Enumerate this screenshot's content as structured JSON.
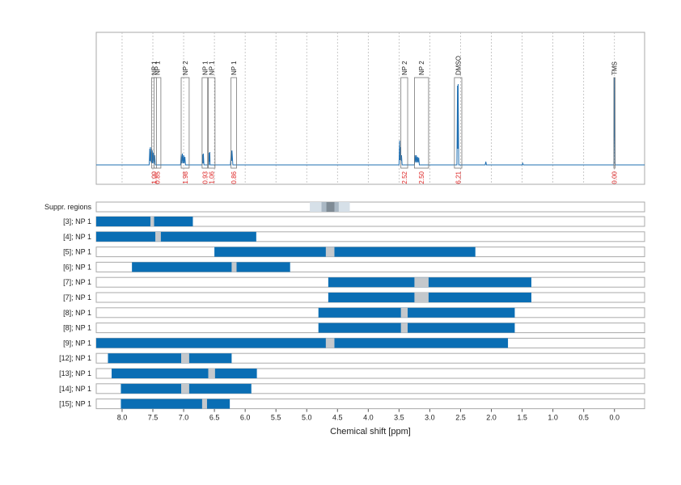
{
  "chart_data": {
    "type": "nmr",
    "x_label": "Chemical shift [ppm]",
    "xlim": [
      8.42,
      -0.49
    ],
    "xticks": [
      {
        "value": 8,
        "label": "8.0"
      },
      7.5,
      {
        "value": 7,
        "label": "7.0"
      },
      6.5,
      {
        "value": 6,
        "label": "6.0"
      },
      5.5,
      {
        "value": 5,
        "label": "5.0"
      },
      4.5,
      {
        "value": 4,
        "label": "4.0"
      },
      3.5,
      {
        "value": 3,
        "label": "3.0"
      },
      2.5,
      {
        "value": 2,
        "label": "2.0"
      },
      1.5,
      {
        "value": 1,
        "label": "1.0"
      },
      0.5,
      {
        "value": 0,
        "label": "0.0"
      }
    ],
    "ylim": [
      -0.24,
      1.64
    ],
    "grid": true,
    "spectrum": {
      "color": "#1f6fb2",
      "x": [
        8.42,
        7.56,
        7.55,
        7.545,
        7.54,
        7.53,
        7.52,
        7.515,
        7.51,
        7.5,
        7.49,
        7.48,
        7.47,
        7.46,
        7.05,
        7.04,
        7.03,
        7.02,
        7.01,
        7.0,
        6.99,
        6.98,
        6.97,
        6.92,
        6.7,
        6.69,
        6.685,
        6.68,
        6.67,
        6.62,
        6.59,
        6.585,
        6.58,
        6.575,
        6.57,
        6.24,
        6.225,
        6.22,
        6.215,
        6.2,
        3.5,
        3.49,
        3.485,
        3.48,
        3.47,
        3.46,
        3.45,
        3.25,
        3.24,
        3.23,
        3.22,
        3.21,
        3.2,
        3.19,
        3.18,
        3.17,
        2.56,
        2.55,
        2.545,
        2.54,
        2.53,
        2.1,
        2.09,
        2.08,
        1.5,
        1.49,
        1.48,
        0.01,
        0.0,
        -0.01,
        -0.49
      ],
      "y": [
        0,
        0,
        0.2,
        0.05,
        0.22,
        0.03,
        0.2,
        0.02,
        0.18,
        0.02,
        0.15,
        0.01,
        0.12,
        0,
        0,
        0.13,
        0.02,
        0.14,
        0.02,
        0.12,
        0.02,
        0.1,
        0,
        0,
        0,
        0.13,
        0.02,
        0.14,
        0,
        0,
        0,
        0.15,
        0.04,
        0.16,
        0,
        0,
        0.17,
        0.05,
        0.18,
        0,
        0,
        0.3,
        0.06,
        0.22,
        0.05,
        0.12,
        0,
        0,
        0.12,
        0.03,
        0.12,
        0.03,
        0.1,
        0.03,
        0.09,
        0,
        0,
        0.98,
        0.2,
        1.0,
        0,
        0,
        0.04,
        0,
        0,
        0.02,
        0,
        0,
        1.08,
        0,
        0
      ]
    },
    "peaks": [
      {
        "label": "NP 1",
        "range": [
          7.52,
          7.44
        ],
        "integral": 1.0,
        "integral_label": "1.00"
      },
      {
        "label": "NP 1",
        "range": [
          7.48,
          7.37
        ],
        "integral": 0.85
      },
      {
        "label": "NP 2",
        "range": [
          7.04,
          6.91
        ],
        "integral": 1.98
      },
      {
        "label": "NP 1",
        "range": [
          6.7,
          6.61
        ],
        "integral": 0.93
      },
      {
        "label": "NP 1",
        "range": [
          6.6,
          6.49
        ],
        "integral": 1.06
      },
      {
        "label": "NP 1",
        "range": [
          6.23,
          6.14
        ],
        "integral": 0.86
      },
      {
        "label": "NP 2",
        "range": [
          3.47,
          3.36
        ],
        "integral": 2.52
      },
      {
        "label": "NP 2",
        "range": [
          3.25,
          3.02
        ],
        "integral": 2.5,
        "integral_label": "2.50"
      },
      {
        "label": "DMSO",
        "range": [
          2.6,
          2.48
        ],
        "integral": 6.21
      },
      {
        "label": "TMS",
        "range": [
          0.01,
          -0.01
        ],
        "integral": 0,
        "integral_label": "0.00"
      }
    ],
    "suppression": {
      "label": "Suppr. regions",
      "regions": [
        [
          4.95,
          4.3
        ],
        [
          4.76,
          4.48
        ],
        [
          4.68,
          4.55
        ]
      ],
      "colors": [
        "#d6e0e8",
        "#aab8c4",
        "#7f8b95"
      ]
    },
    "bar_color": "#0a6eb4",
    "gap_color": "#c4c8cc",
    "rows": [
      {
        "label": "[3]; NP 1",
        "range": [
          8.42,
          6.85
        ],
        "gap": [
          7.54,
          7.48
        ]
      },
      {
        "label": "[4]; NP 1",
        "range": [
          8.42,
          5.82
        ],
        "gap": [
          7.46,
          7.37
        ]
      },
      {
        "label": "[5]; NP 1",
        "range": [
          6.5,
          2.26
        ],
        "gap": [
          4.69,
          4.55
        ]
      },
      {
        "label": "[6]; NP 1",
        "range": [
          7.84,
          5.27
        ],
        "gap": [
          6.22,
          6.14
        ]
      },
      {
        "label": "[7]; NP 1",
        "range": [
          4.65,
          1.35
        ],
        "gap": [
          3.25,
          3.02
        ]
      },
      {
        "label": "[7]; NP 1",
        "range": [
          4.65,
          1.35
        ],
        "gap": [
          3.25,
          3.02
        ]
      },
      {
        "label": "[8]; NP 1",
        "range": [
          4.81,
          1.62
        ],
        "gap": [
          3.47,
          3.36
        ]
      },
      {
        "label": "[8]; NP 1",
        "range": [
          4.81,
          1.62
        ],
        "gap": [
          3.47,
          3.36
        ]
      },
      {
        "label": "[9]; NP 1",
        "range": [
          8.42,
          1.73
        ],
        "gap": [
          4.69,
          4.55
        ]
      },
      {
        "label": "[12]; NP 1",
        "range": [
          8.23,
          6.22
        ],
        "gap": [
          7.04,
          6.91
        ]
      },
      {
        "label": "[13]; NP 1",
        "range": [
          8.17,
          5.81
        ],
        "gap": [
          6.6,
          6.49
        ]
      },
      {
        "label": "[14]; NP 1",
        "range": [
          8.02,
          5.9
        ],
        "gap": [
          7.04,
          6.91
        ]
      },
      {
        "label": "[15]; NP 1",
        "range": [
          8.02,
          6.25
        ],
        "gap": [
          6.7,
          6.62
        ]
      }
    ]
  }
}
